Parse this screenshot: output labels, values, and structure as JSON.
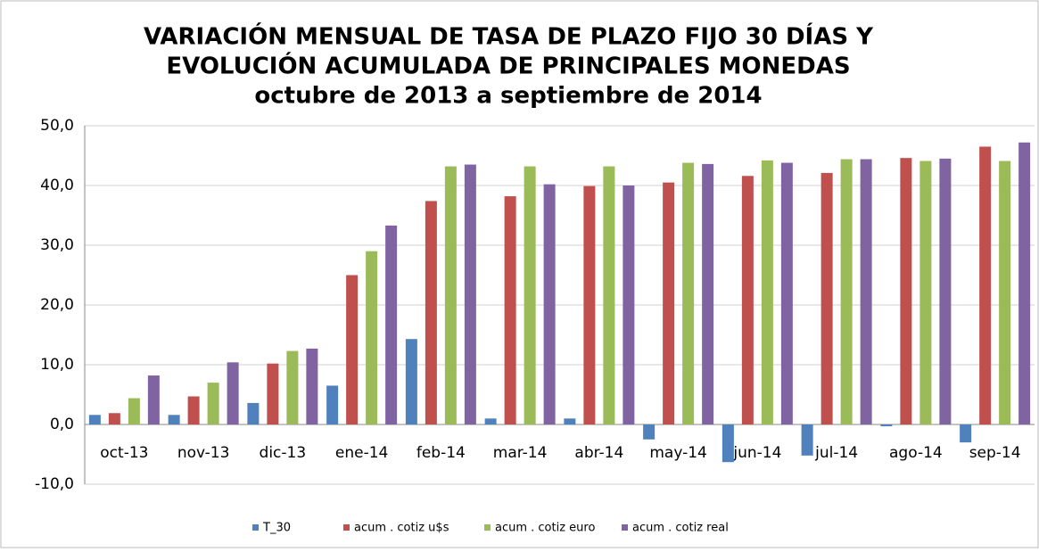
{
  "chart_data": {
    "type": "bar",
    "title_lines": [
      "VARIACIÓN MENSUAL DE TASA DE PLAZO FIJO 30 DÍAS Y",
      "EVOLUCIÓN ACUMULADA DE PRINCIPALES MONEDAS",
      "octubre de 2013 a septiembre de 2014"
    ],
    "categories": [
      "oct-13",
      "nov-13",
      "dic-13",
      "ene-14",
      "feb-14",
      "mar-14",
      "abr-14",
      "may-14",
      "jun-14",
      "jul-14",
      "ago-14",
      "sep-14"
    ],
    "series": [
      {
        "name": "T_30",
        "color": "#4f81bd",
        "values": [
          1.6,
          1.6,
          3.6,
          6.5,
          14.3,
          1.0,
          1.0,
          -2.5,
          -6.3,
          -5.2,
          -0.3,
          -3.0
        ]
      },
      {
        "name": "acum . cotiz u$s",
        "color": "#c0504d",
        "values": [
          1.9,
          4.7,
          10.2,
          25.0,
          37.4,
          38.2,
          39.9,
          40.5,
          41.6,
          42.1,
          44.6,
          46.5
        ]
      },
      {
        "name": "acum . cotiz euro",
        "color": "#9bbb59",
        "values": [
          4.4,
          7.0,
          12.3,
          29.0,
          43.2,
          43.2,
          43.2,
          43.8,
          44.2,
          44.4,
          44.1,
          44.1
        ]
      },
      {
        "name": "acum . cotiz real",
        "color": "#8064a2",
        "values": [
          8.2,
          10.4,
          12.7,
          33.3,
          43.5,
          40.2,
          40.0,
          43.6,
          43.8,
          44.4,
          44.5,
          47.2
        ]
      }
    ],
    "ylim": [
      -10,
      50
    ],
    "yticks": [
      {
        "value": -10,
        "label": "-10,0"
      },
      {
        "value": 0,
        "label": "0,0"
      },
      {
        "value": 10,
        "label": "10,0"
      },
      {
        "value": 20,
        "label": "20,0"
      },
      {
        "value": 30,
        "label": "30,0"
      },
      {
        "value": 40,
        "label": "40,0"
      },
      {
        "value": 50,
        "label": "50,0"
      }
    ],
    "grid": true,
    "legend": "bottom"
  }
}
